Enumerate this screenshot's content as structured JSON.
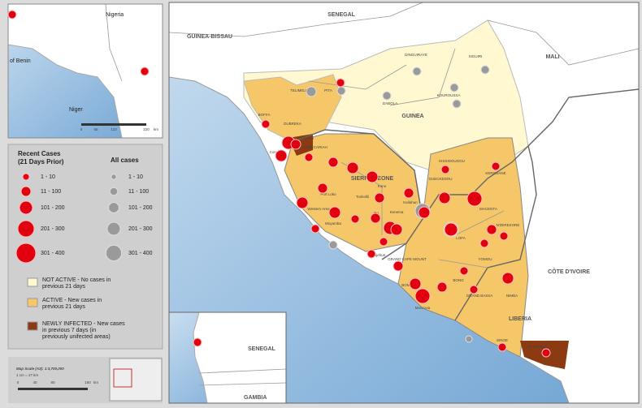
{
  "inset_top": {
    "labels": [
      "Nigeria",
      "of Benin",
      "Niger"
    ],
    "scale": [
      "0",
      "55",
      "110",
      "220",
      "km"
    ]
  },
  "main_map": {
    "countries": [
      "SENEGAL",
      "GUINEA-BISSAU",
      "MALI",
      "GUINEA",
      "SIERRA LEONE",
      "LIBERIA",
      "CÔTE D'IVOIRE"
    ],
    "districts": [
      "BOFFA",
      "DUBREKA",
      "FORECARIAH",
      "TELIMELE",
      "PITA",
      "DABOLA",
      "SIGUIRI",
      "KOUROUSSA",
      "DINGUIRAYE",
      "KISSIDOUGOU",
      "KEROUANE",
      "GUECKEDOU",
      "MACENTA",
      "N'ZEREKORE",
      "YOMOU",
      "LOFA",
      "BONG",
      "NIMBA",
      "GRAND CAPE MOUNT",
      "GRAND BASSA",
      "BOMI",
      "SINOE",
      "RIVER GEE",
      "Kono",
      "Kailahun",
      "Bo",
      "Port Loko",
      "Moyamba",
      "Western Area",
      "Tonkolili",
      "Pujehun",
      "Kenema",
      "Conakry",
      "COYAH",
      "Monrovia"
    ]
  },
  "inset_bottom": {
    "labels": [
      "SENEGAL",
      "GAMBIA"
    ]
  },
  "legend": {
    "recent_title": "Recent Cases (21 Days Prior)",
    "all_title": "All cases",
    "ranges": [
      "1 - 10",
      "11 - 100",
      "101 - 200",
      "201 - 300",
      "301 - 400"
    ],
    "status": [
      "NOT ACTIVE - No cases in previous 21 days",
      "ACTIVE - New cases in previous 21 days",
      "NEWLY INFECTED - New cases in previous  7 days (in previously unifected areas)"
    ]
  },
  "scale": {
    "title": "Map Scale (A3): 1:3,700,000",
    "subtitle": "1 cm = 37 km",
    "ticks": [
      "0",
      "40",
      "80",
      "160",
      "km"
    ]
  }
}
